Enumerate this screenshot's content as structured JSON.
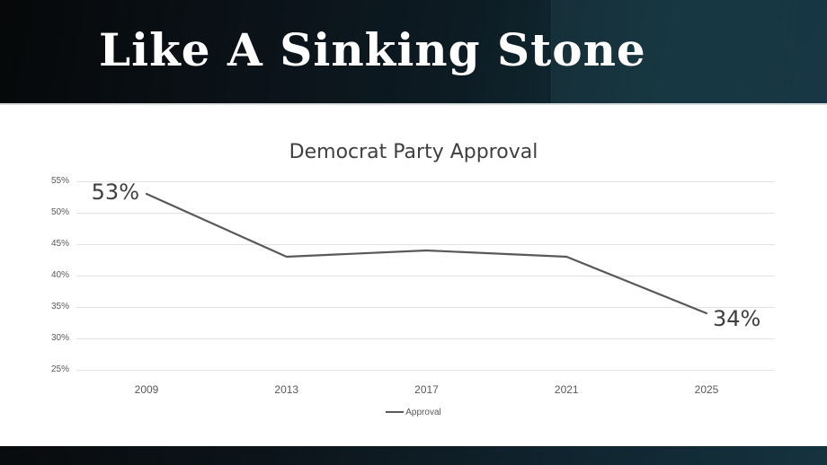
{
  "header": {
    "title": "Like A Sinking Stone"
  },
  "chart_data": {
    "type": "line",
    "title": "Democrat Party Approval",
    "x": [
      2009,
      2013,
      2017,
      2021,
      2025
    ],
    "x_tick_labels": [
      "2009",
      "2013",
      "2017",
      "2021",
      "2025"
    ],
    "series": [
      {
        "name": "Approval",
        "values": [
          53,
          43,
          44,
          43,
          34
        ]
      }
    ],
    "y_tick_labels": [
      "55%",
      "50%",
      "45%",
      "40%",
      "35%",
      "30%",
      "25%"
    ],
    "ylim": [
      25,
      55
    ],
    "y_tick_step": 5,
    "grid": true,
    "legend_position": "bottom",
    "data_labels": [
      {
        "index": 0,
        "text": "53%"
      },
      {
        "index": 4,
        "text": "34%"
      }
    ],
    "line_color": "#595959",
    "gridline_color": "#e2e2e2",
    "tick_label_color": "#595959",
    "title_color": "#3f3f3f",
    "data_label_color": "#3f3f3f"
  },
  "theme": {
    "banner_dark": "#060809",
    "banner_teal": "#15333f",
    "background": "#ffffff",
    "title_text": "#ffffff"
  }
}
